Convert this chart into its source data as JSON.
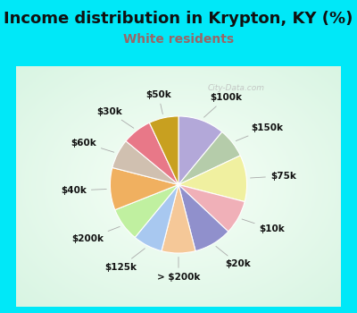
{
  "title": "Income distribution in Krypton, KY (%)",
  "subtitle": "White residents",
  "title_fontsize": 13,
  "subtitle_fontsize": 10,
  "title_color": "#111111",
  "subtitle_color": "#996666",
  "bg_cyan": "#00e8f8",
  "watermark": "City-Data.com",
  "labels": [
    "$100k",
    "$150k",
    "$75k",
    "$10k",
    "$20k",
    "> $200k",
    "$125k",
    "$200k",
    "$40k",
    "$60k",
    "$30k",
    "$50k"
  ],
  "values": [
    11,
    7,
    11,
    8,
    9,
    8,
    7,
    8,
    10,
    7,
    7,
    7
  ],
  "colors": [
    "#b3a8d9",
    "#b5ccaa",
    "#f0f0a0",
    "#f0b0b8",
    "#9090cc",
    "#f5c898",
    "#a8c8f0",
    "#c0f0a0",
    "#f0b060",
    "#d0c0b0",
    "#e87888",
    "#c8a020"
  ],
  "label_fontsize": 7.5,
  "label_color": "#111111"
}
